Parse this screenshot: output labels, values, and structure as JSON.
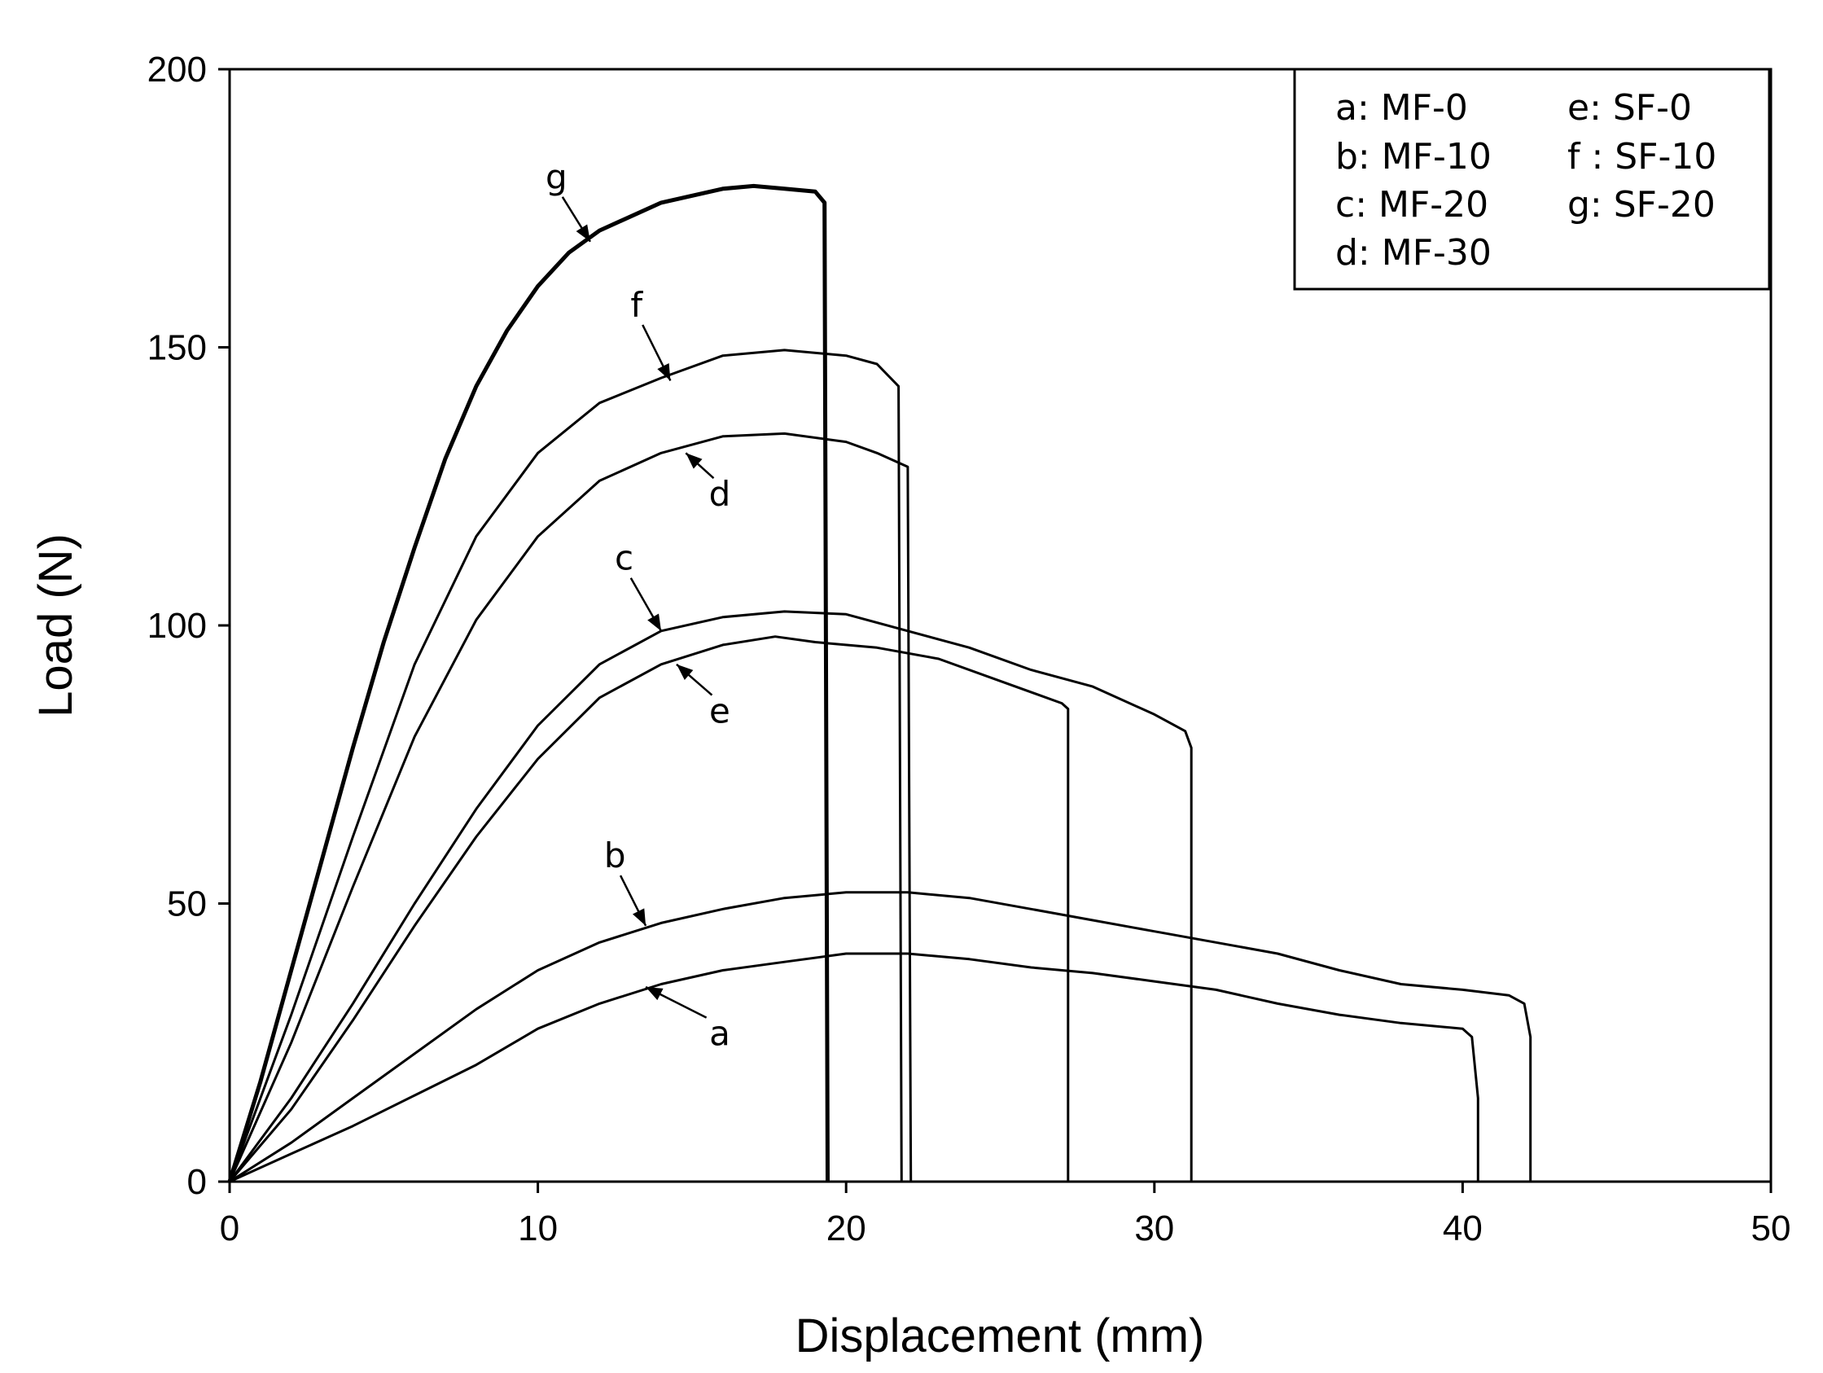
{
  "chart_data": {
    "type": "line",
    "xlabel": "Displacement (mm)",
    "ylabel": "Load (N)",
    "xlim": [
      0,
      50
    ],
    "ylim": [
      0,
      200
    ],
    "xticks": [
      "0",
      "10",
      "20",
      "30",
      "40",
      "50"
    ],
    "yticks": [
      "0",
      "50",
      "100",
      "150",
      "200"
    ],
    "grid": false,
    "legend_position": "top-right",
    "legend": [
      {
        "label": "a: MF-0"
      },
      {
        "label": "b: MF-10"
      },
      {
        "label": "c: MF-20"
      },
      {
        "label": "d: MF-30"
      },
      {
        "label": "e: SF-0"
      },
      {
        "label": "f : SF-10"
      },
      {
        "label": "g: SF-20"
      }
    ],
    "series": [
      {
        "label": "a",
        "annotation": {
          "x": 13.5,
          "y": 35
        },
        "points": [
          [
            0,
            0
          ],
          [
            2,
            5
          ],
          [
            4,
            10
          ],
          [
            6,
            15.5
          ],
          [
            8,
            21
          ],
          [
            10,
            27.5
          ],
          [
            12,
            32
          ],
          [
            14,
            35.5
          ],
          [
            16,
            38
          ],
          [
            18,
            39.5
          ],
          [
            20,
            41
          ],
          [
            22,
            41
          ],
          [
            24,
            40
          ],
          [
            26,
            38.5
          ],
          [
            28,
            37.5
          ],
          [
            30,
            36
          ],
          [
            32,
            34.5
          ],
          [
            34,
            32
          ],
          [
            36,
            30
          ],
          [
            38,
            28.5
          ],
          [
            40,
            27.5
          ],
          [
            40.3,
            26
          ],
          [
            40.5,
            15
          ],
          [
            40.5,
            0
          ]
        ]
      },
      {
        "label": "b",
        "annotation": {
          "x": 13.5,
          "y": 46
        },
        "points": [
          [
            0,
            0
          ],
          [
            2,
            7
          ],
          [
            4,
            15
          ],
          [
            6,
            23
          ],
          [
            8,
            31
          ],
          [
            10,
            38
          ],
          [
            12,
            43
          ],
          [
            14,
            46.5
          ],
          [
            16,
            49
          ],
          [
            18,
            51
          ],
          [
            20,
            52
          ],
          [
            22,
            52
          ],
          [
            24,
            51
          ],
          [
            26,
            49
          ],
          [
            28,
            47
          ],
          [
            30,
            45
          ],
          [
            32,
            43
          ],
          [
            34,
            41
          ],
          [
            36,
            38
          ],
          [
            38,
            35.5
          ],
          [
            40,
            34.5
          ],
          [
            41.5,
            33.5
          ],
          [
            42,
            32
          ],
          [
            42.2,
            26
          ],
          [
            42.2,
            0
          ]
        ]
      },
      {
        "label": "c",
        "annotation": {
          "x": 14,
          "y": 99
        },
        "points": [
          [
            0,
            0
          ],
          [
            2,
            15
          ],
          [
            4,
            32
          ],
          [
            6,
            50
          ],
          [
            8,
            67
          ],
          [
            10,
            82
          ],
          [
            12,
            93
          ],
          [
            14,
            99
          ],
          [
            16,
            101.5
          ],
          [
            18,
            102.5
          ],
          [
            20,
            102
          ],
          [
            22,
            99
          ],
          [
            24,
            96
          ],
          [
            26,
            92
          ],
          [
            28,
            89
          ],
          [
            30,
            84
          ],
          [
            31,
            81
          ],
          [
            31.2,
            78
          ],
          [
            31.2,
            0
          ]
        ]
      },
      {
        "label": "d",
        "annotation": {
          "x": 14.8,
          "y": 131
        },
        "points": [
          [
            0,
            0
          ],
          [
            2,
            25
          ],
          [
            4,
            53
          ],
          [
            6,
            80
          ],
          [
            8,
            101
          ],
          [
            10,
            116
          ],
          [
            12,
            126
          ],
          [
            14,
            131
          ],
          [
            16,
            134
          ],
          [
            18,
            134.5
          ],
          [
            20,
            133
          ],
          [
            21,
            131
          ],
          [
            22,
            128.5
          ],
          [
            22.1,
            0
          ]
        ]
      },
      {
        "label": "e",
        "annotation": {
          "x": 14.5,
          "y": 93
        },
        "points": [
          [
            0,
            0
          ],
          [
            2,
            13
          ],
          [
            4,
            29
          ],
          [
            6,
            46
          ],
          [
            8,
            62
          ],
          [
            10,
            76
          ],
          [
            12,
            87
          ],
          [
            14,
            93
          ],
          [
            16,
            96.5
          ],
          [
            17.7,
            98
          ],
          [
            19,
            97
          ],
          [
            21,
            96
          ],
          [
            23,
            94
          ],
          [
            25,
            90
          ],
          [
            27,
            86
          ],
          [
            27.2,
            85
          ],
          [
            27.2,
            0
          ]
        ]
      },
      {
        "label": "f",
        "annotation": {
          "x": 14.3,
          "y": 144
        },
        "points": [
          [
            0,
            0
          ],
          [
            2,
            30
          ],
          [
            4,
            62
          ],
          [
            6,
            93
          ],
          [
            8,
            116
          ],
          [
            10,
            131
          ],
          [
            12,
            140
          ],
          [
            14,
            144.5
          ],
          [
            16,
            148.5
          ],
          [
            18,
            149.5
          ],
          [
            20,
            148.5
          ],
          [
            21,
            147
          ],
          [
            21.7,
            143
          ],
          [
            21.8,
            0
          ]
        ]
      },
      {
        "label": "g",
        "annotation": {
          "x": 11.7,
          "y": 169
        },
        "points": [
          [
            0,
            0
          ],
          [
            1,
            18
          ],
          [
            2,
            38
          ],
          [
            3,
            58
          ],
          [
            4,
            78
          ],
          [
            5,
            97
          ],
          [
            6,
            114
          ],
          [
            7,
            130
          ],
          [
            8,
            143
          ],
          [
            9,
            153
          ],
          [
            10,
            161
          ],
          [
            11,
            167
          ],
          [
            12,
            171
          ],
          [
            14,
            176
          ],
          [
            16,
            178.5
          ],
          [
            17,
            179
          ],
          [
            18,
            178.5
          ],
          [
            19,
            178
          ],
          [
            19.3,
            176
          ],
          [
            19.4,
            0
          ]
        ]
      }
    ],
    "curve_labels": [
      {
        "text": "a",
        "x": 15.9,
        "y": 24.5
      },
      {
        "text": "b",
        "x": 12.5,
        "y": 56.5
      },
      {
        "text": "c",
        "x": 12.8,
        "y": 110
      },
      {
        "text": "d",
        "x": 15.9,
        "y": 121.5
      },
      {
        "text": "e",
        "x": 15.9,
        "y": 82.5
      },
      {
        "text": "f",
        "x": 13.2,
        "y": 155.5
      },
      {
        "text": "g",
        "x": 10.6,
        "y": 178.5
      }
    ]
  }
}
